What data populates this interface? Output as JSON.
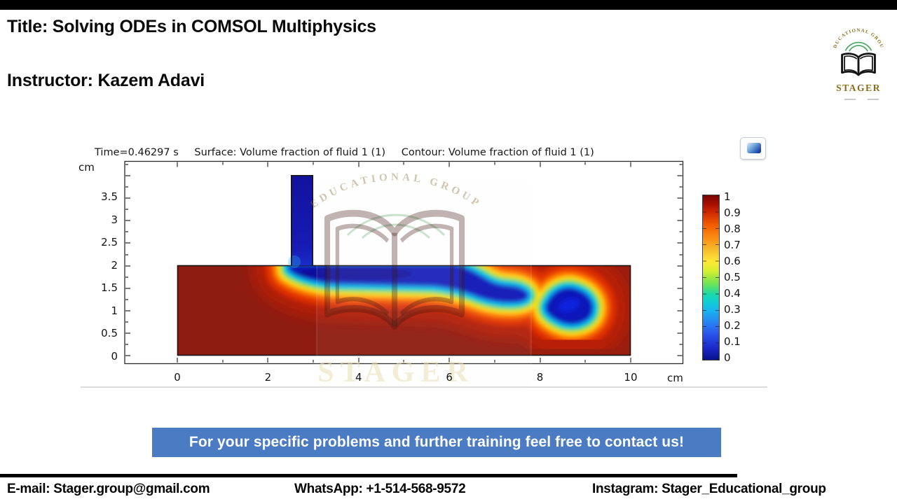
{
  "header": {
    "title": "Title: Solving ODEs in COMSOL Multiphysics",
    "instructor": "Instructor: Kazem Adavi"
  },
  "logo": {
    "arc_text": "EDUCATIONAL GROUP",
    "name": "STAGER"
  },
  "plot": {
    "time_label": "Time=0.46297 s",
    "surface_label": "Surface: Volume fraction of fluid 1 (1)",
    "contour_label": "Contour: Volume fraction of fluid 1 (1)",
    "y_axis_unit": "cm",
    "x_axis_unit": "cm",
    "y_tick_labels": [
      "3.5",
      "3",
      "2.5",
      "2",
      "1.5",
      "1",
      "0.5",
      "0"
    ],
    "x_tick_labels": [
      "0",
      "2",
      "4",
      "6",
      "8",
      "10"
    ],
    "colorbar_labels": [
      "1",
      "0.9",
      "0.8",
      "0.7",
      "0.6",
      "0.5",
      "0.4",
      "0.3",
      "0.2",
      "0.1",
      "0"
    ],
    "watermark_name": "STAGER",
    "watermark_arc_text": "EDUCATIONAL GROUP"
  },
  "banner": {
    "text": "For your specific problems and further training feel free to contact us!",
    "bg_color": "#4b7bc3"
  },
  "footer": {
    "email": "E-mail: Stager.group@gmail.com",
    "whatsapp": "WhatsApp: +1-514-568-9572",
    "instagram": "Instagram: Stager_Educational_group"
  },
  "colors": {
    "fluid1_dark_red": "#8e1c10",
    "fluid2_dark_blue": "#1516aa",
    "banner_blue": "#4b7bc3",
    "logo_gold": "#8a6d1c",
    "logo_green": "#43a85e"
  },
  "chart_data": {
    "type": "heatmap",
    "title": "Surface: Volume fraction of fluid 1 (1)  Contour: Volume fraction of fluid 1 (1)",
    "time_label": "Time=0.46297 s",
    "time_s": 0.46297,
    "x_unit": "cm",
    "y_unit": "cm",
    "x_ticks": [
      0,
      2,
      4,
      6,
      8,
      10
    ],
    "y_ticks": [
      0,
      0.5,
      1,
      1.5,
      2,
      2.5,
      3,
      3.5
    ],
    "xlim": [
      -1.2,
      11.2
    ],
    "ylim": [
      -0.2,
      4.3
    ],
    "colorbar": {
      "min": 0,
      "max": 1,
      "tick_step": 0.1,
      "colormap": "jet"
    },
    "geometry": {
      "main_channel_cm": {
        "x": [
          0,
          10
        ],
        "y": [
          0,
          2
        ]
      },
      "inlet_channel_cm": {
        "x": [
          2.5,
          3.0
        ],
        "y": [
          2,
          4
        ]
      }
    },
    "field_features": [
      "vertical inlet channel filled with fluid of volume fraction 0 (dark blue)",
      "blue plume hugs the top wall of the main channel from x≈2.5 to x≈6.5 cm, thickness ≈0.5 cm",
      "plume detaches from the wall near x≈6.5 cm forming a lens around (7.2, 1.45) cm",
      "pinch point near (7.9, 1.35) cm where contours cross",
      "detached blob of fluid 2 centered near (8.6, 1.1) cm",
      "rest of the 10 cm × 2 cm channel is fluid 1 with volume fraction 1 (dark red)",
      "rainbow (jet) transition bands 0→1 surround the blue plume"
    ]
  }
}
